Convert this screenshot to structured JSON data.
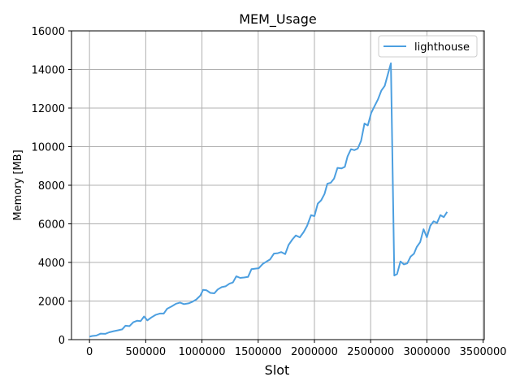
{
  "chart_data": {
    "type": "line",
    "title": "MEM_Usage",
    "xlabel": "Slot",
    "ylabel": "Memory [MB]",
    "xlim": [
      -160000,
      3510000
    ],
    "ylim": [
      0,
      16000
    ],
    "xticks": [
      0,
      500000,
      1000000,
      1500000,
      2000000,
      2500000,
      3000000,
      3500000
    ],
    "xtick_labels": [
      "0",
      "500000",
      "1000000",
      "1500000",
      "2000000",
      "2500000",
      "3000000",
      "3500000"
    ],
    "yticks": [
      0,
      2000,
      4000,
      6000,
      8000,
      10000,
      12000,
      14000,
      16000
    ],
    "ytick_labels": [
      "0",
      "2000",
      "4000",
      "6000",
      "8000",
      "10000",
      "12000",
      "14000",
      "16000"
    ],
    "grid": true,
    "legend_position": "top-right",
    "series": [
      {
        "name": "lighthouse",
        "color": "#4c9fe0",
        "points": [
          [
            0,
            150
          ],
          [
            25000,
            190
          ],
          [
            60000,
            210
          ],
          [
            100000,
            310
          ],
          [
            140000,
            300
          ],
          [
            175000,
            380
          ],
          [
            215000,
            440
          ],
          [
            250000,
            480
          ],
          [
            290000,
            530
          ],
          [
            320000,
            720
          ],
          [
            355000,
            700
          ],
          [
            390000,
            900
          ],
          [
            425000,
            980
          ],
          [
            455000,
            960
          ],
          [
            485000,
            1200
          ],
          [
            515000,
            1000
          ],
          [
            550000,
            1150
          ],
          [
            590000,
            1290
          ],
          [
            625000,
            1350
          ],
          [
            660000,
            1350
          ],
          [
            690000,
            1600
          ],
          [
            730000,
            1720
          ],
          [
            770000,
            1860
          ],
          [
            805000,
            1920
          ],
          [
            840000,
            1840
          ],
          [
            880000,
            1880
          ],
          [
            915000,
            1960
          ],
          [
            950000,
            2080
          ],
          [
            985000,
            2280
          ],
          [
            1010000,
            2580
          ],
          [
            1040000,
            2560
          ],
          [
            1075000,
            2420
          ],
          [
            1110000,
            2400
          ],
          [
            1140000,
            2600
          ],
          [
            1175000,
            2720
          ],
          [
            1210000,
            2760
          ],
          [
            1245000,
            2900
          ],
          [
            1275000,
            2960
          ],
          [
            1305000,
            3280
          ],
          [
            1340000,
            3200
          ],
          [
            1375000,
            3220
          ],
          [
            1410000,
            3250
          ],
          [
            1440000,
            3650
          ],
          [
            1475000,
            3680
          ],
          [
            1505000,
            3700
          ],
          [
            1540000,
            3920
          ],
          [
            1575000,
            4050
          ],
          [
            1605000,
            4150
          ],
          [
            1640000,
            4460
          ],
          [
            1675000,
            4480
          ],
          [
            1705000,
            4540
          ],
          [
            1740000,
            4430
          ],
          [
            1770000,
            4900
          ],
          [
            1805000,
            5200
          ],
          [
            1835000,
            5400
          ],
          [
            1870000,
            5300
          ],
          [
            1905000,
            5580
          ],
          [
            1935000,
            5900
          ],
          [
            1970000,
            6450
          ],
          [
            2000000,
            6400
          ],
          [
            2030000,
            7050
          ],
          [
            2060000,
            7220
          ],
          [
            2090000,
            7550
          ],
          [
            2115000,
            8080
          ],
          [
            2145000,
            8130
          ],
          [
            2175000,
            8350
          ],
          [
            2205000,
            8900
          ],
          [
            2240000,
            8870
          ],
          [
            2270000,
            8950
          ],
          [
            2295000,
            9500
          ],
          [
            2325000,
            9870
          ],
          [
            2355000,
            9820
          ],
          [
            2385000,
            9900
          ],
          [
            2415000,
            10300
          ],
          [
            2445000,
            11200
          ],
          [
            2475000,
            11100
          ],
          [
            2505000,
            11750
          ],
          [
            2535000,
            12100
          ],
          [
            2565000,
            12450
          ],
          [
            2595000,
            12900
          ],
          [
            2625000,
            13150
          ],
          [
            2655000,
            13800
          ],
          [
            2680000,
            14320
          ],
          [
            2710000,
            3320
          ],
          [
            2735000,
            3400
          ],
          [
            2765000,
            4050
          ],
          [
            2795000,
            3900
          ],
          [
            2825000,
            3950
          ],
          [
            2855000,
            4300
          ],
          [
            2885000,
            4450
          ],
          [
            2910000,
            4800
          ],
          [
            2940000,
            5050
          ],
          [
            2970000,
            5720
          ],
          [
            3000000,
            5300
          ],
          [
            3030000,
            5900
          ],
          [
            3060000,
            6130
          ],
          [
            3090000,
            6050
          ],
          [
            3120000,
            6450
          ],
          [
            3150000,
            6350
          ],
          [
            3180000,
            6620
          ]
        ]
      }
    ]
  }
}
